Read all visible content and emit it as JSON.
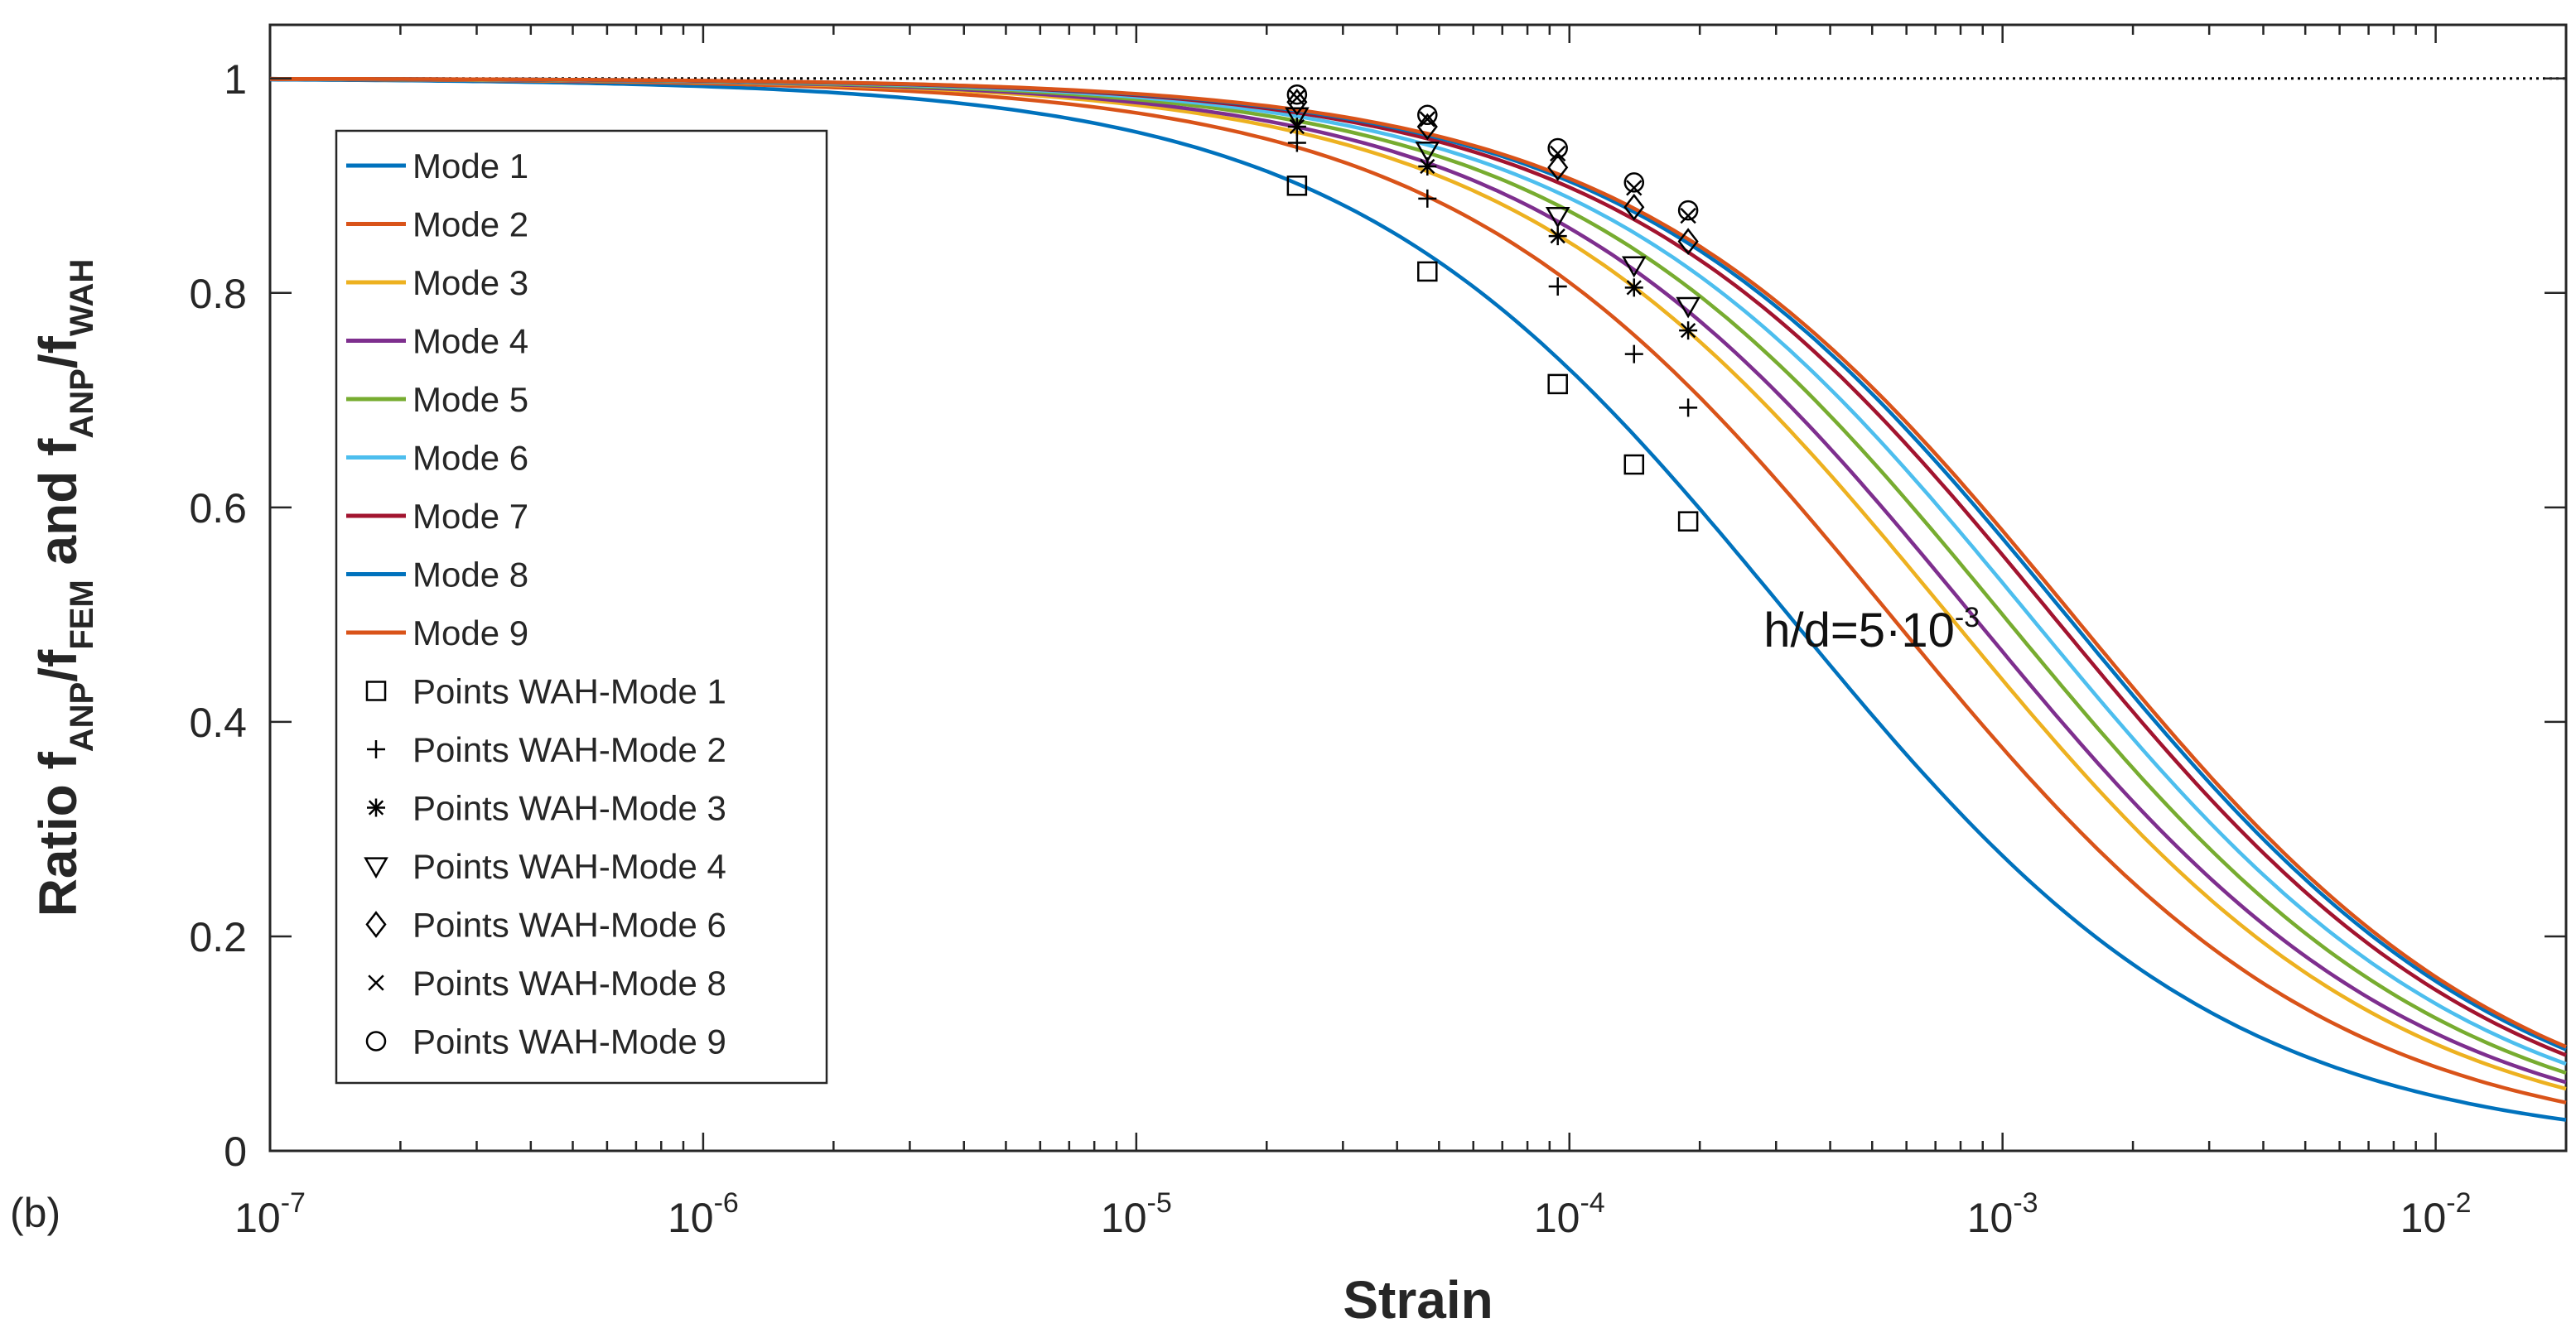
{
  "panel_label": "(b)",
  "chart_data": {
    "type": "line",
    "title": "",
    "xlabel": "Strain",
    "xscale": "log",
    "xlim": [
      1e-07,
      0.02
    ],
    "ylim": [
      0,
      1.05
    ],
    "grid": false,
    "legend_position": "left",
    "x_ticks": [
      {
        "value": 1e-07,
        "base": "10",
        "exp": "-7"
      },
      {
        "value": 1e-06,
        "base": "10",
        "exp": "-6"
      },
      {
        "value": 1e-05,
        "base": "10",
        "exp": "-5"
      },
      {
        "value": 0.0001,
        "base": "10",
        "exp": "-4"
      },
      {
        "value": 0.001,
        "base": "10",
        "exp": "-3"
      },
      {
        "value": 0.01,
        "base": "10",
        "exp": "-2"
      }
    ],
    "y_ticks": [
      {
        "value": 0,
        "label": "0"
      },
      {
        "value": 0.2,
        "label": "0.2"
      },
      {
        "value": 0.4,
        "label": "0.4"
      },
      {
        "value": 0.6,
        "label": "0.6"
      },
      {
        "value": 0.8,
        "label": "0.8"
      },
      {
        "value": 1,
        "label": "1"
      }
    ],
    "ylabel_parts": [
      {
        "text": "Ratio f",
        "sub": false
      },
      {
        "text": "ANP",
        "sub": true
      },
      {
        "text": "/f",
        "sub": false
      },
      {
        "text": "FEM",
        "sub": true
      },
      {
        "text": " and f",
        "sub": false
      },
      {
        "text": "ANP",
        "sub": true
      },
      {
        "text": "/f",
        "sub": false
      },
      {
        "text": "WAH",
        "sub": true
      }
    ],
    "annotation": {
      "text": "h/d=5·10",
      "exp": "-3",
      "x": 0.00035,
      "y": 0.47
    },
    "reference_line": {
      "y": 1,
      "style": "dotted",
      "color": "#000000"
    },
    "series": [
      {
        "name": "Mode 1",
        "color": "#0072BD",
        "gamma_ref": 0.00032,
        "a": 0.85
      },
      {
        "name": "Mode 2",
        "color": "#D95319",
        "gamma_ref": 0.00055,
        "a": 0.85
      },
      {
        "name": "Mode 3",
        "color": "#EDB120",
        "gamma_ref": 0.00075,
        "a": 0.85
      },
      {
        "name": "Mode 4",
        "color": "#7E2F8E",
        "gamma_ref": 0.00085,
        "a": 0.85
      },
      {
        "name": "Mode 5",
        "color": "#77AC30",
        "gamma_ref": 0.001,
        "a": 0.85
      },
      {
        "name": "Mode 6",
        "color": "#4DBEEE",
        "gamma_ref": 0.00115,
        "a": 0.85
      },
      {
        "name": "Mode 7",
        "color": "#A2142F",
        "gamma_ref": 0.0013,
        "a": 0.85
      },
      {
        "name": "Mode 8",
        "color": "#0072BD",
        "gamma_ref": 0.0014,
        "a": 0.85
      },
      {
        "name": "Mode 9",
        "color": "#D95319",
        "gamma_ref": 0.00145,
        "a": 0.85
      }
    ],
    "marker_series": [
      {
        "name": "Points WAH-Mode 1",
        "marker": "square",
        "points": [
          [
            2.35e-05,
            0.9
          ],
          [
            4.7e-05,
            0.82
          ],
          [
            9.4e-05,
            0.715
          ],
          [
            0.000141,
            0.64
          ],
          [
            0.000188,
            0.587
          ]
        ]
      },
      {
        "name": "Points WAH-Mode 2",
        "marker": "plus",
        "points": [
          [
            2.35e-05,
            0.94
          ],
          [
            4.7e-05,
            0.888
          ],
          [
            9.4e-05,
            0.806
          ],
          [
            0.000141,
            0.743
          ],
          [
            0.000188,
            0.693
          ]
        ]
      },
      {
        "name": "Points WAH-Mode 3",
        "marker": "star",
        "points": [
          [
            2.35e-05,
            0.955
          ],
          [
            4.7e-05,
            0.918
          ],
          [
            9.4e-05,
            0.853
          ],
          [
            0.000141,
            0.805
          ],
          [
            0.000188,
            0.765
          ]
        ]
      },
      {
        "name": "Points WAH-Mode 4",
        "marker": "triangle-down",
        "points": [
          [
            2.35e-05,
            0.965
          ],
          [
            4.7e-05,
            0.933
          ],
          [
            9.4e-05,
            0.872
          ],
          [
            0.000141,
            0.826
          ],
          [
            0.000188,
            0.788
          ]
        ]
      },
      {
        "name": "Points WAH-Mode 6",
        "marker": "diamond",
        "points": [
          [
            2.35e-05,
            0.978
          ],
          [
            4.7e-05,
            0.955
          ],
          [
            9.4e-05,
            0.917
          ],
          [
            0.000141,
            0.88
          ],
          [
            0.000188,
            0.848
          ]
        ]
      },
      {
        "name": "Points WAH-Mode 8",
        "marker": "cross",
        "points": [
          [
            2.35e-05,
            0.982
          ],
          [
            4.7e-05,
            0.962
          ],
          [
            9.4e-05,
            0.93
          ],
          [
            0.000141,
            0.898
          ],
          [
            0.000188,
            0.872
          ]
        ]
      },
      {
        "name": "Points WAH-Mode 9",
        "marker": "circle",
        "points": [
          [
            2.35e-05,
            0.985
          ],
          [
            4.7e-05,
            0.966
          ],
          [
            9.4e-05,
            0.935
          ],
          [
            0.000141,
            0.903
          ],
          [
            0.000188,
            0.877
          ]
        ]
      }
    ]
  }
}
